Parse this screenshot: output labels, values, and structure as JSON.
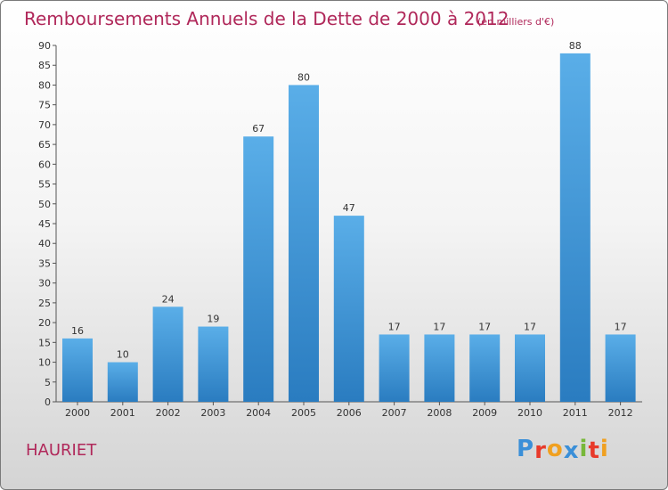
{
  "chart_data": {
    "type": "bar",
    "title": "Remboursements Annuels de la Dette de 2000 à 2012",
    "subtitle": "(en milliers d'€)",
    "categories": [
      "2000",
      "2001",
      "2002",
      "2003",
      "2004",
      "2005",
      "2006",
      "2007",
      "2008",
      "2009",
      "2010",
      "2011",
      "2012"
    ],
    "values": [
      16,
      10,
      24,
      19,
      67,
      80,
      47,
      17,
      17,
      17,
      17,
      88,
      17
    ],
    "ylim": [
      0,
      90
    ],
    "yticks": [
      0,
      5,
      10,
      15,
      20,
      25,
      30,
      35,
      40,
      45,
      50,
      55,
      60,
      65,
      70,
      75,
      80,
      85,
      90
    ],
    "grid": false,
    "legend": "none",
    "colors": {
      "bar_top": "#5aaee8",
      "bar_bottom": "#2a7cc0",
      "title": "#b0285a"
    }
  },
  "footer": {
    "commune": "HAURIET",
    "brand": {
      "letters": [
        "P",
        "r",
        "o",
        "x",
        "i",
        "t",
        "i"
      ],
      "colors": [
        "#3a8fd8",
        "#e83a2a",
        "#f0a020",
        "#3a8fd8",
        "#78b83a",
        "#e83a2a",
        "#f0a020"
      ]
    }
  }
}
